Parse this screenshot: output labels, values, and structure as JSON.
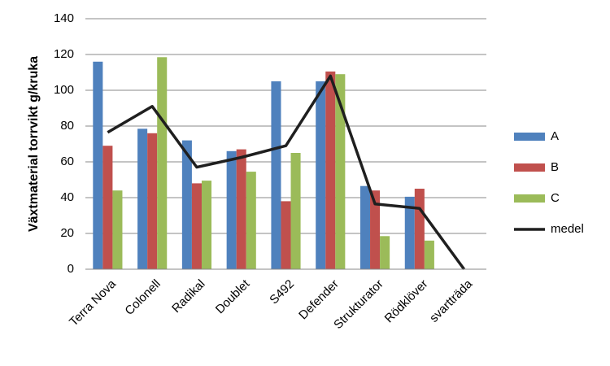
{
  "chart_data": {
    "type": "bar",
    "y_label": "Växtmaterial torrvikt g/kruka",
    "categories": [
      "Terra Nova",
      "Colonell",
      "Radikal",
      "Doublet",
      "S492",
      "Defender",
      "Strukturator",
      "Rödklöver",
      "svartträda"
    ],
    "series": [
      {
        "name": "A",
        "color": "#4f81bd",
        "values": [
          116,
          78.5,
          72,
          66,
          105,
          105,
          46.5,
          40.5,
          0
        ]
      },
      {
        "name": "B",
        "color": "#c0504d",
        "values": [
          69,
          76,
          48,
          67,
          38,
          110.5,
          44,
          45,
          0
        ]
      },
      {
        "name": "C",
        "color": "#9bbb59",
        "values": [
          44,
          118.5,
          49.5,
          54.5,
          65,
          109,
          18.5,
          16,
          0
        ]
      },
      {
        "name": "medel",
        "color": "#1f1f1f",
        "type": "line",
        "values": [
          76.5,
          91,
          57,
          62.5,
          69,
          108,
          36.5,
          34,
          0
        ]
      }
    ],
    "ylim": [
      0,
      140
    ],
    "yticks": [
      0,
      20,
      40,
      60,
      80,
      100,
      120,
      140
    ],
    "grid": true,
    "legend": "right"
  }
}
